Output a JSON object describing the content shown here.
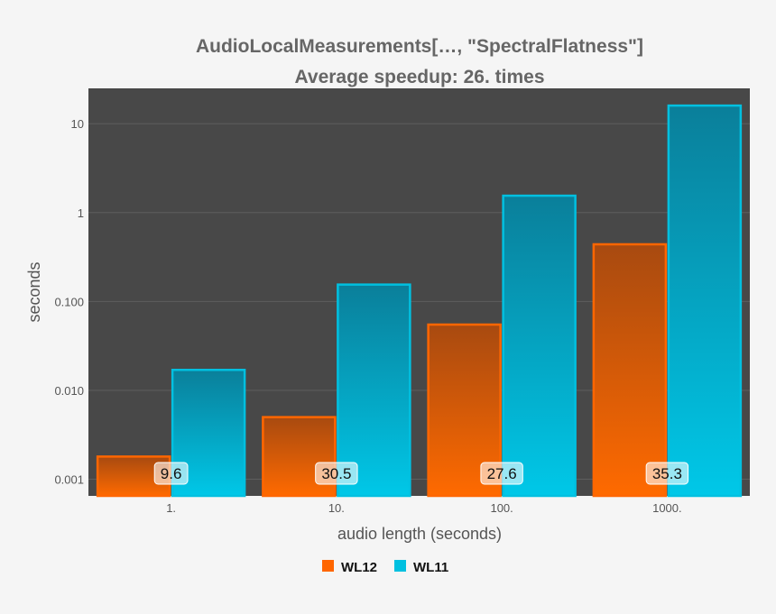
{
  "chart_data": {
    "type": "bar",
    "title": "AudioLocalMeasurements[…, \"SpectralFlatness\"]",
    "subtitle": "Average speedup: 26. times",
    "xlabel": "audio length (seconds)",
    "ylabel": "seconds",
    "y_scale": "log",
    "ylim": [
      0.00065,
      25
    ],
    "y_ticks": [
      {
        "value": 0.001,
        "label": "0.001"
      },
      {
        "value": 0.01,
        "label": "0.010"
      },
      {
        "value": 0.1,
        "label": "0.100"
      },
      {
        "value": 1,
        "label": "1"
      },
      {
        "value": 10,
        "label": "10"
      }
    ],
    "categories": [
      "1.",
      "10.",
      "100.",
      "1000."
    ],
    "series": [
      {
        "name": "WL12",
        "color": "#ff6600",
        "values": [
          0.0018,
          0.005,
          0.055,
          0.44
        ]
      },
      {
        "name": "WL11",
        "color": "#00c0e0",
        "values": [
          0.017,
          0.155,
          1.55,
          16
        ]
      }
    ],
    "bar_labels": [
      "9.6",
      "30.5",
      "27.6",
      "35.3"
    ],
    "grid": true,
    "legend_position": "bottom",
    "plot_background": "#484848"
  }
}
